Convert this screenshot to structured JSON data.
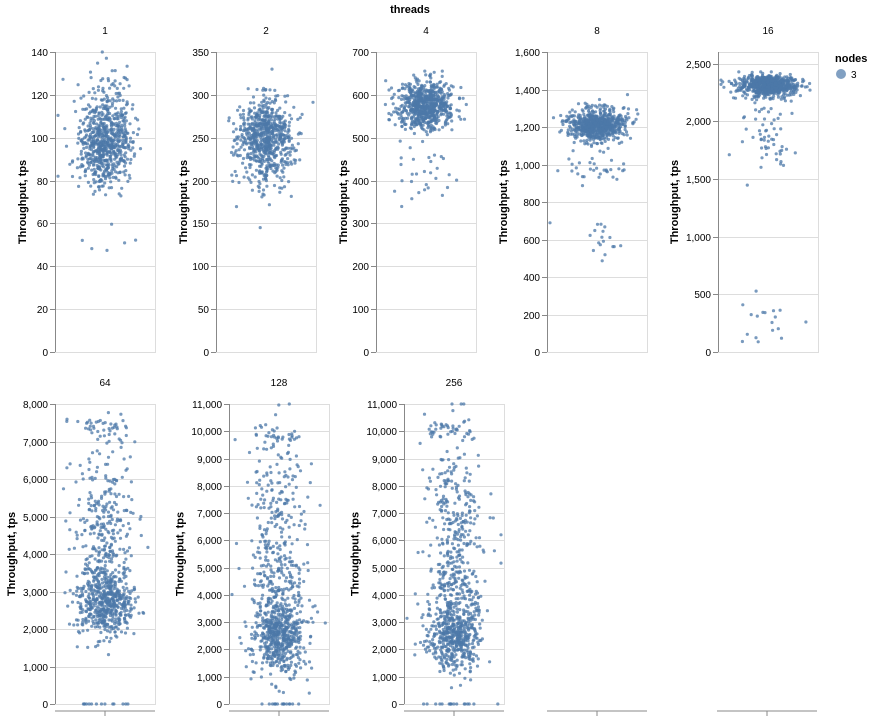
{
  "chart_data": {
    "type": "scatter",
    "title": "threads",
    "ylabel": "Throughput, tps",
    "xlabel": "",
    "grid": true,
    "legend": {
      "title": "nodes",
      "placement": "top-right",
      "entries": [
        {
          "label": "3",
          "color": "#4c78a8"
        }
      ]
    },
    "point_color": "#4c78a8",
    "facets": [
      {
        "title": "1",
        "ylim": [
          0,
          140
        ],
        "yticks": [
          0,
          20,
          40,
          60,
          80,
          100,
          120,
          140
        ],
        "tick_labels": [
          "0",
          "20",
          "40",
          "60",
          "80",
          "100",
          "120",
          "140"
        ],
        "clusters": [
          {
            "center": 96,
            "spread": 9,
            "count": 600
          },
          {
            "center": 115,
            "spread": 9,
            "count": 120
          },
          {
            "center": 50,
            "spread": 3,
            "count": 5
          }
        ]
      },
      {
        "title": "2",
        "ylim": [
          0,
          350
        ],
        "yticks": [
          0,
          50,
          100,
          150,
          200,
          250,
          300,
          350
        ],
        "tick_labels": [
          "0",
          "50",
          "100",
          "150",
          "200",
          "250",
          "300",
          "350"
        ],
        "clusters": [
          {
            "center": 250,
            "spread": 25,
            "count": 700
          },
          {
            "center": 170,
            "spread": 15,
            "count": 3
          }
        ]
      },
      {
        "title": "4",
        "ylim": [
          0,
          700
        ],
        "yticks": [
          0,
          100,
          200,
          300,
          400,
          500,
          600,
          700
        ],
        "tick_labels": [
          "0",
          "100",
          "200",
          "300",
          "400",
          "500",
          "600",
          "700"
        ],
        "clusters": [
          {
            "center": 575,
            "spread": 28,
            "count": 700
          },
          {
            "center": 420,
            "spread": 30,
            "count": 28
          }
        ]
      },
      {
        "title": "8",
        "ylim": [
          0,
          1600
        ],
        "yticks": [
          0,
          200,
          400,
          600,
          800,
          1000,
          1200,
          1400,
          1600
        ],
        "tick_labels": [
          "0",
          "200",
          "400",
          "600",
          "800",
          "1,000",
          "1,200",
          "1,400",
          "1,600"
        ],
        "clusters": [
          {
            "center": 1210,
            "spread": 45,
            "count": 700
          },
          {
            "center": 975,
            "spread": 35,
            "count": 30
          },
          {
            "center": 590,
            "spread": 60,
            "count": 18
          }
        ]
      },
      {
        "title": "16",
        "ylim": [
          0,
          2600
        ],
        "yticks": [
          0,
          500,
          1000,
          1500,
          2000,
          2500
        ],
        "tick_labels": [
          "0",
          "500",
          "1,000",
          "1,500",
          "2,000",
          "2,500"
        ],
        "clusters": [
          {
            "center": 2310,
            "spread": 45,
            "count": 700
          },
          {
            "center": 1880,
            "spread": 120,
            "count": 55
          },
          {
            "center": 280,
            "spread": 130,
            "count": 18
          }
        ]
      },
      {
        "title": "64",
        "ylim": [
          0,
          8000
        ],
        "yticks": [
          0,
          1000,
          2000,
          3000,
          4000,
          5000,
          6000,
          7000,
          8000
        ],
        "tick_labels": [
          "0",
          "1,000",
          "2,000",
          "3,000",
          "4,000",
          "5,000",
          "6,000",
          "7,000",
          "8,000"
        ],
        "clusters": [
          {
            "center": 2700,
            "spread": 450,
            "count": 500
          },
          {
            "center": 4300,
            "spread": 900,
            "count": 250
          },
          {
            "center": 6200,
            "spread": 700,
            "count": 60
          },
          {
            "center": 7400,
            "spread": 150,
            "count": 35
          },
          {
            "center": 0,
            "spread": 0,
            "count": 14
          }
        ]
      },
      {
        "title": "128",
        "ylim": [
          0,
          11000
        ],
        "yticks": [
          0,
          1000,
          2000,
          3000,
          4000,
          5000,
          6000,
          7000,
          8000,
          9000,
          10000,
          11000
        ],
        "tick_labels": [
          "0",
          "1,000",
          "2,000",
          "3,000",
          "4,000",
          "5,000",
          "6,000",
          "7,000",
          "8,000",
          "9,000",
          "10,000",
          "11,000"
        ],
        "clusters": [
          {
            "center": 2500,
            "spread": 650,
            "count": 550
          },
          {
            "center": 4500,
            "spread": 700,
            "count": 150
          },
          {
            "center": 7000,
            "spread": 1500,
            "count": 180
          },
          {
            "center": 9800,
            "spread": 150,
            "count": 30
          },
          {
            "center": 0,
            "spread": 0,
            "count": 16
          }
        ]
      },
      {
        "title": "256",
        "ylim": [
          0,
          11000
        ],
        "yticks": [
          0,
          1000,
          2000,
          3000,
          4000,
          5000,
          6000,
          7000,
          8000,
          9000,
          10000,
          11000
        ],
        "tick_labels": [
          "0",
          "1,000",
          "2,000",
          "3,000",
          "4,000",
          "5,000",
          "6,000",
          "7,000",
          "8,000",
          "9,000",
          "10,000",
          "11,000"
        ],
        "clusters": [
          {
            "center": 2500,
            "spread": 650,
            "count": 500
          },
          {
            "center": 4400,
            "spread": 500,
            "count": 120
          },
          {
            "center": 6800,
            "spread": 1400,
            "count": 250
          },
          {
            "center": 10100,
            "spread": 200,
            "count": 40
          },
          {
            "center": 0,
            "spread": 0,
            "count": 18
          }
        ]
      },
      {
        "title": "",
        "empty": true
      },
      {
        "title": "",
        "empty": true
      }
    ]
  }
}
